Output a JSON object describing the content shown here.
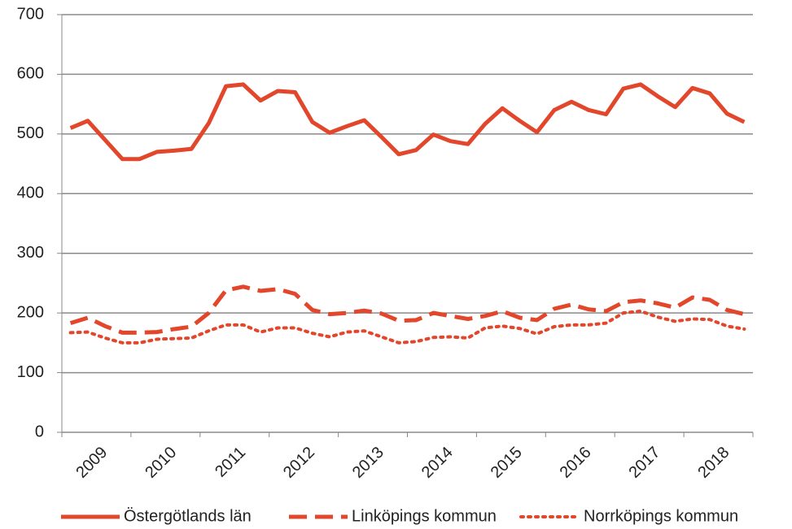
{
  "chart_data": {
    "type": "line",
    "categories": [
      null,
      null,
      "2009",
      null,
      null,
      null,
      "2010",
      null,
      null,
      null,
      "2011",
      null,
      null,
      null,
      "2012",
      null,
      null,
      null,
      "2013",
      null,
      null,
      null,
      "2014",
      null,
      null,
      null,
      "2015",
      null,
      null,
      null,
      "2016",
      null,
      null,
      null,
      "2017",
      null,
      null,
      null,
      "2018",
      null
    ],
    "series": [
      {
        "name": "Östergötlands län",
        "color": "#e2462b",
        "dash": "solid",
        "values": [
          510,
          522,
          490,
          458,
          458,
          470,
          472,
          475,
          518,
          580,
          583,
          556,
          572,
          570,
          520,
          502,
          513,
          523,
          495,
          466,
          473,
          499,
          488,
          483,
          517,
          543,
          522,
          503,
          540,
          554,
          540,
          533,
          576,
          583,
          563,
          545,
          577,
          568,
          534,
          520
        ]
      },
      {
        "name": "Linköpings kommun",
        "color": "#e2462b",
        "dash": "dashed",
        "values": [
          183,
          192,
          178,
          167,
          167,
          168,
          173,
          177,
          200,
          238,
          244,
          237,
          240,
          232,
          205,
          198,
          200,
          204,
          199,
          187,
          188,
          200,
          195,
          190,
          195,
          203,
          192,
          188,
          207,
          214,
          206,
          203,
          218,
          221,
          216,
          209,
          226,
          222,
          205,
          198
        ]
      },
      {
        "name": "Norrköpings kommun",
        "color": "#e2462b",
        "dash": "dotted",
        "values": [
          167,
          168,
          158,
          150,
          150,
          156,
          157,
          158,
          170,
          180,
          180,
          168,
          175,
          175,
          166,
          160,
          168,
          170,
          160,
          150,
          152,
          159,
          160,
          158,
          175,
          178,
          174,
          165,
          177,
          180,
          180,
          183,
          200,
          203,
          193,
          186,
          190,
          189,
          178,
          173
        ]
      }
    ],
    "ylim": [
      0,
      700
    ],
    "yticks": [
      0,
      100,
      200,
      300,
      400,
      500,
      600,
      700
    ],
    "grid": true,
    "legend": "bottom"
  }
}
